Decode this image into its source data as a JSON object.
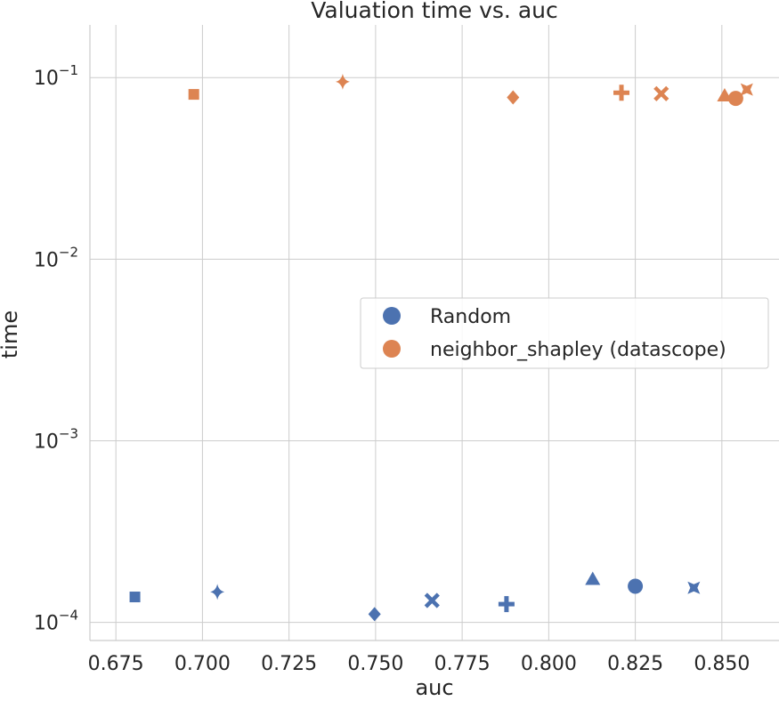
{
  "chart_data": {
    "type": "scatter",
    "title": "Valuation time vs. auc",
    "xlabel": "auc",
    "ylabel": "time",
    "xlim": [
      0.6675,
      0.8665
    ],
    "ylim_log10": [
      -4.1,
      -0.71
    ],
    "yscale": "log",
    "grid": true,
    "legend_position": "center-right",
    "x_ticks": [
      "0.675",
      "0.700",
      "0.725",
      "0.750",
      "0.775",
      "0.800",
      "0.825",
      "0.850"
    ],
    "x_tick_values": [
      0.675,
      0.7,
      0.725,
      0.75,
      0.775,
      0.8,
      0.825,
      0.85
    ],
    "y_ticks": [
      {
        "value": 0.0001,
        "base": "10",
        "exp": "−4"
      },
      {
        "value": 0.001,
        "base": "10",
        "exp": "−3"
      },
      {
        "value": 0.01,
        "base": "10",
        "exp": "−2"
      },
      {
        "value": 0.1,
        "base": "10",
        "exp": "−1"
      }
    ],
    "series": [
      {
        "name": "Random",
        "color": "#4c72b0",
        "points": [
          {
            "x": 0.6805,
            "y": 0.000138,
            "marker": "square"
          },
          {
            "x": 0.7043,
            "y": 0.000147,
            "marker": "star4"
          },
          {
            "x": 0.7497,
            "y": 0.000111,
            "marker": "diamond"
          },
          {
            "x": 0.7663,
            "y": 0.000132,
            "marker": "x"
          },
          {
            "x": 0.7878,
            "y": 0.000126,
            "marker": "plus"
          },
          {
            "x": 0.8127,
            "y": 0.000174,
            "marker": "triangle"
          },
          {
            "x": 0.825,
            "y": 0.000158,
            "marker": "circle"
          },
          {
            "x": 0.8419,
            "y": 0.000155,
            "marker": "hourglass"
          }
        ]
      },
      {
        "name": "neighbor_shapley (datascope)",
        "color": "#dd8452",
        "points": [
          {
            "x": 0.6975,
            "y": 0.0808,
            "marker": "square"
          },
          {
            "x": 0.7405,
            "y": 0.0948,
            "marker": "star4"
          },
          {
            "x": 0.7897,
            "y": 0.0778,
            "marker": "diamond"
          },
          {
            "x": 0.8325,
            "y": 0.0815,
            "marker": "x"
          },
          {
            "x": 0.821,
            "y": 0.0825,
            "marker": "plus"
          },
          {
            "x": 0.8508,
            "y": 0.08,
            "marker": "triangle"
          },
          {
            "x": 0.854,
            "y": 0.0768,
            "marker": "circle"
          },
          {
            "x": 0.8572,
            "y": 0.086,
            "marker": "hourglass"
          }
        ]
      }
    ]
  }
}
